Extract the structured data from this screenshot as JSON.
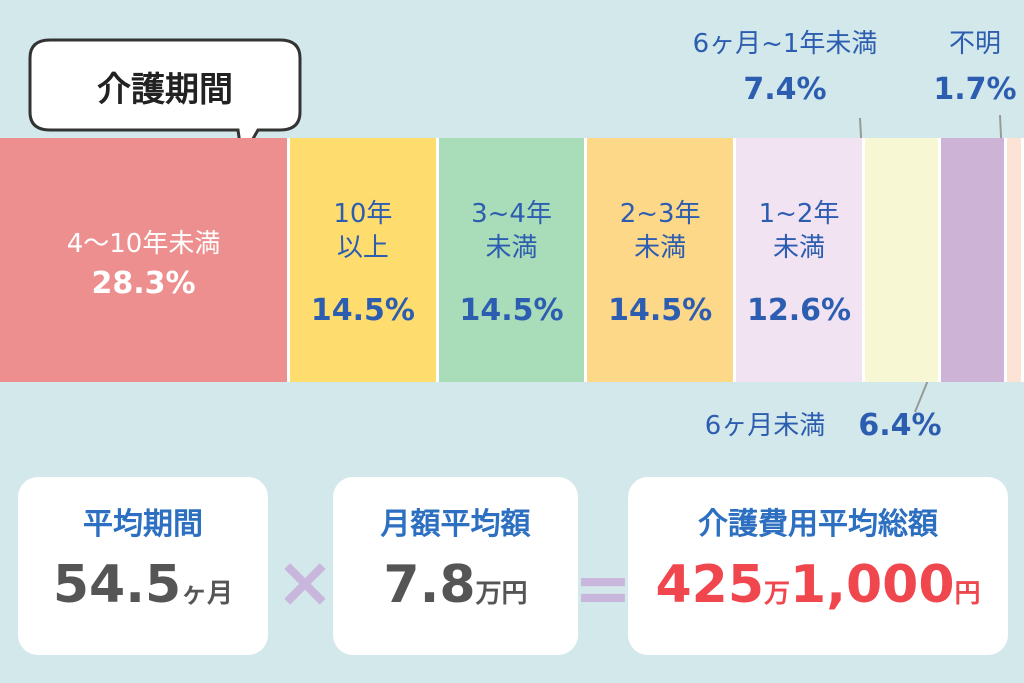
{
  "title": "介護期間",
  "chart_data": {
    "type": "stacked-bar",
    "categories": [
      "4〜10年未満",
      "10年\n以上",
      "3~4年\n未満",
      "2~3年\n未満",
      "1~2年\n未満",
      "6ヶ月~1年未満",
      "6ヶ月未満",
      "不明"
    ],
    "values": [
      28.3,
      14.5,
      14.5,
      14.5,
      12.6,
      7.4,
      6.4,
      1.7
    ],
    "value_labels": [
      "28.3%",
      "14.5%",
      "14.5%",
      "14.5%",
      "12.6%",
      "7.4%",
      "6.4%",
      "1.7%"
    ],
    "colors": [
      "#ee8f8f",
      "#fedd6e",
      "#a9dcb9",
      "#fdd888",
      "#f1e3f2",
      "#f7f8d3",
      "#cdb3d6",
      "#fde2d6"
    ]
  },
  "summary": {
    "duration": {
      "label": "平均期間",
      "value": "54.5",
      "unit": "ヶ月"
    },
    "monthly": {
      "label": "月額平均額",
      "value": "7.8",
      "unit": "万円"
    },
    "total": {
      "label": "介護費用平均総額",
      "value_man": "425",
      "unit_man": "万",
      "value": "1,000",
      "unit": "円"
    }
  }
}
